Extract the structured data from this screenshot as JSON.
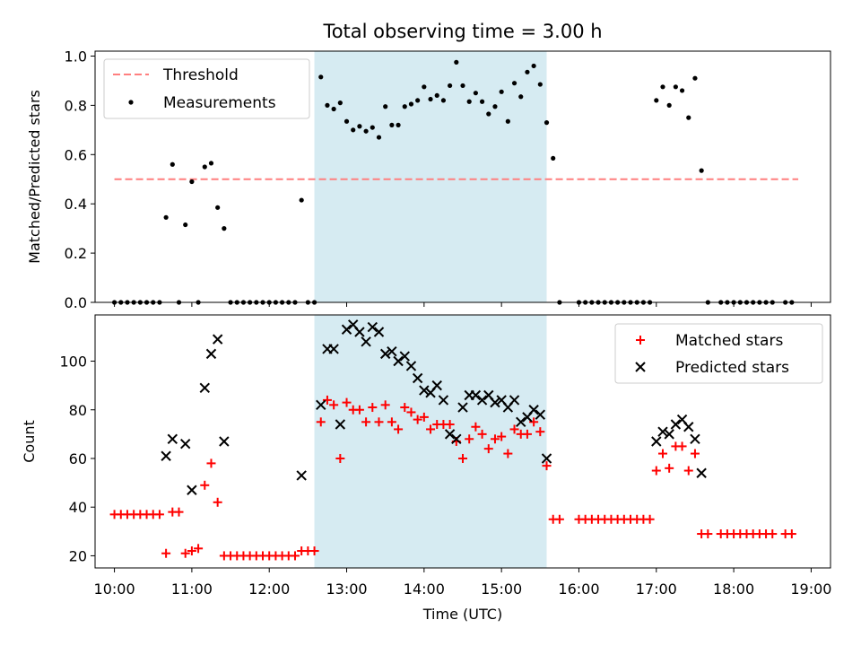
{
  "chart_data": [
    {
      "type": "scatter",
      "title": "Total observing time = 3.00 h",
      "ylabel": "Matched/Predicted stars",
      "xlabel": "",
      "xlim": [
        "09:45",
        "19:15"
      ],
      "ylim": [
        0,
        1.02
      ],
      "yticks": [
        "0.0",
        "0.2",
        "0.4",
        "0.6",
        "0.8",
        "1.0"
      ],
      "shaded_span": [
        "12:35",
        "15:35"
      ],
      "legend": {
        "placement": "top-left",
        "entries": [
          "Threshold",
          "Measurements"
        ]
      },
      "threshold": {
        "name": "Threshold",
        "value": 0.5,
        "x_range": [
          "10:00",
          "18:50"
        ],
        "color": "#ff7f7f"
      },
      "series": [
        {
          "name": "Measurements",
          "color": "#000000",
          "points": [
            [
              "10:00",
              0
            ],
            [
              "10:05",
              0
            ],
            [
              "10:10",
              0
            ],
            [
              "10:15",
              0
            ],
            [
              "10:20",
              0
            ],
            [
              "10:25",
              0
            ],
            [
              "10:30",
              0
            ],
            [
              "10:35",
              0
            ],
            [
              "10:40",
              0.345
            ],
            [
              "10:45",
              0.56
            ],
            [
              "10:50",
              0
            ],
            [
              "10:55",
              0.315
            ],
            [
              "11:00",
              0.49
            ],
            [
              "11:05",
              0
            ],
            [
              "11:10",
              0.55
            ],
            [
              "11:15",
              0.565
            ],
            [
              "11:20",
              0.385
            ],
            [
              "11:25",
              0.3
            ],
            [
              "11:30",
              0
            ],
            [
              "11:35",
              0
            ],
            [
              "11:40",
              0
            ],
            [
              "11:45",
              0
            ],
            [
              "11:50",
              0
            ],
            [
              "11:55",
              0
            ],
            [
              "12:00",
              0
            ],
            [
              "12:05",
              0
            ],
            [
              "12:10",
              0
            ],
            [
              "12:15",
              0
            ],
            [
              "12:20",
              0
            ],
            [
              "12:25",
              0.415
            ],
            [
              "12:30",
              0
            ],
            [
              "12:35",
              0
            ],
            [
              "12:40",
              0.915
            ],
            [
              "12:45",
              0.8
            ],
            [
              "12:50",
              0.785
            ],
            [
              "12:55",
              0.81
            ],
            [
              "13:00",
              0.735
            ],
            [
              "13:05",
              0.7
            ],
            [
              "13:10",
              0.715
            ],
            [
              "13:15",
              0.695
            ],
            [
              "13:20",
              0.71
            ],
            [
              "13:25",
              0.67
            ],
            [
              "13:30",
              0.795
            ],
            [
              "13:35",
              0.72
            ],
            [
              "13:40",
              0.72
            ],
            [
              "13:45",
              0.795
            ],
            [
              "13:50",
              0.805
            ],
            [
              "13:55",
              0.82
            ],
            [
              "14:00",
              0.875
            ],
            [
              "14:05",
              0.825
            ],
            [
              "14:10",
              0.84
            ],
            [
              "14:15",
              0.82
            ],
            [
              "14:20",
              0.88
            ],
            [
              "14:25",
              0.975
            ],
            [
              "14:30",
              0.88
            ],
            [
              "14:35",
              0.815
            ],
            [
              "14:40",
              0.85
            ],
            [
              "14:45",
              0.815
            ],
            [
              "14:50",
              0.765
            ],
            [
              "14:55",
              0.795
            ],
            [
              "15:00",
              0.855
            ],
            [
              "15:05",
              0.735
            ],
            [
              "15:10",
              0.89
            ],
            [
              "15:15",
              0.835
            ],
            [
              "15:20",
              0.935
            ],
            [
              "15:25",
              0.96
            ],
            [
              "15:30",
              0.885
            ],
            [
              "15:35",
              0.73
            ],
            [
              "15:40",
              0.585
            ],
            [
              "15:45",
              0
            ],
            [
              "16:00",
              0
            ],
            [
              "16:05",
              0
            ],
            [
              "16:10",
              0
            ],
            [
              "16:15",
              0
            ],
            [
              "16:20",
              0
            ],
            [
              "16:25",
              0
            ],
            [
              "16:30",
              0
            ],
            [
              "16:35",
              0
            ],
            [
              "16:40",
              0
            ],
            [
              "16:45",
              0
            ],
            [
              "16:50",
              0
            ],
            [
              "16:55",
              0
            ],
            [
              "17:00",
              0.82
            ],
            [
              "17:05",
              0.875
            ],
            [
              "17:10",
              0.8
            ],
            [
              "17:15",
              0.875
            ],
            [
              "17:20",
              0.86
            ],
            [
              "17:25",
              0.75
            ],
            [
              "17:30",
              0.91
            ],
            [
              "17:35",
              0.535
            ],
            [
              "17:40",
              0
            ],
            [
              "17:50",
              0
            ],
            [
              "17:55",
              0
            ],
            [
              "18:00",
              0
            ],
            [
              "18:05",
              0
            ],
            [
              "18:10",
              0
            ],
            [
              "18:15",
              0
            ],
            [
              "18:20",
              0
            ],
            [
              "18:25",
              0
            ],
            [
              "18:30",
              0
            ],
            [
              "18:40",
              0
            ],
            [
              "18:45",
              0
            ]
          ]
        }
      ]
    },
    {
      "type": "scatter",
      "title": "",
      "ylabel": "Count",
      "xlabel": "Time (UTC)",
      "xlim": [
        "09:45",
        "19:15"
      ],
      "ylim": [
        15,
        119
      ],
      "xticks": [
        "10:00",
        "11:00",
        "12:00",
        "13:00",
        "14:00",
        "15:00",
        "16:00",
        "17:00",
        "18:00",
        "19:00"
      ],
      "yticks": [
        "20",
        "40",
        "60",
        "80",
        "100"
      ],
      "shaded_span": [
        "12:35",
        "15:35"
      ],
      "legend": {
        "placement": "top-right",
        "entries": [
          "Matched stars",
          "Predicted stars"
        ]
      },
      "series": [
        {
          "name": "Matched stars",
          "marker": "plus",
          "color": "#ff0000",
          "points": [
            [
              "10:00",
              37
            ],
            [
              "10:05",
              37
            ],
            [
              "10:10",
              37
            ],
            [
              "10:15",
              37
            ],
            [
              "10:20",
              37
            ],
            [
              "10:25",
              37
            ],
            [
              "10:30",
              37
            ],
            [
              "10:35",
              37
            ],
            [
              "10:40",
              21
            ],
            [
              "10:45",
              38
            ],
            [
              "10:50",
              38
            ],
            [
              "10:55",
              21
            ],
            [
              "11:00",
              22
            ],
            [
              "11:05",
              23
            ],
            [
              "11:10",
              49
            ],
            [
              "11:15",
              58
            ],
            [
              "11:20",
              42
            ],
            [
              "11:25",
              20
            ],
            [
              "11:30",
              20
            ],
            [
              "11:35",
              20
            ],
            [
              "11:40",
              20
            ],
            [
              "11:45",
              20
            ],
            [
              "11:50",
              20
            ],
            [
              "11:55",
              20
            ],
            [
              "12:00",
              20
            ],
            [
              "12:05",
              20
            ],
            [
              "12:10",
              20
            ],
            [
              "12:15",
              20
            ],
            [
              "12:20",
              20
            ],
            [
              "12:25",
              22
            ],
            [
              "12:30",
              22
            ],
            [
              "12:35",
              22
            ],
            [
              "12:40",
              75
            ],
            [
              "12:45",
              84
            ],
            [
              "12:50",
              82
            ],
            [
              "12:55",
              60
            ],
            [
              "13:00",
              83
            ],
            [
              "13:05",
              80
            ],
            [
              "13:10",
              80
            ],
            [
              "13:15",
              75
            ],
            [
              "13:20",
              81
            ],
            [
              "13:25",
              75
            ],
            [
              "13:30",
              82
            ],
            [
              "13:35",
              75
            ],
            [
              "13:40",
              72
            ],
            [
              "13:45",
              81
            ],
            [
              "13:50",
              79
            ],
            [
              "13:55",
              76
            ],
            [
              "14:00",
              77
            ],
            [
              "14:05",
              72
            ],
            [
              "14:10",
              74
            ],
            [
              "14:15",
              74
            ],
            [
              "14:20",
              74
            ],
            [
              "14:25",
              67
            ],
            [
              "14:30",
              60
            ],
            [
              "14:35",
              68
            ],
            [
              "14:40",
              73
            ],
            [
              "14:45",
              70
            ],
            [
              "14:50",
              64
            ],
            [
              "14:55",
              68
            ],
            [
              "15:00",
              69
            ],
            [
              "15:05",
              62
            ],
            [
              "15:10",
              72
            ],
            [
              "15:15",
              70
            ],
            [
              "15:20",
              70
            ],
            [
              "15:25",
              75
            ],
            [
              "15:30",
              71
            ],
            [
              "15:35",
              57
            ],
            [
              "15:40",
              35
            ],
            [
              "15:45",
              35
            ],
            [
              "16:00",
              35
            ],
            [
              "16:05",
              35
            ],
            [
              "16:10",
              35
            ],
            [
              "16:15",
              35
            ],
            [
              "16:20",
              35
            ],
            [
              "16:25",
              35
            ],
            [
              "16:30",
              35
            ],
            [
              "16:35",
              35
            ],
            [
              "16:40",
              35
            ],
            [
              "16:45",
              35
            ],
            [
              "16:50",
              35
            ],
            [
              "16:55",
              35
            ],
            [
              "17:00",
              55
            ],
            [
              "17:05",
              62
            ],
            [
              "17:10",
              56
            ],
            [
              "17:15",
              65
            ],
            [
              "17:20",
              65
            ],
            [
              "17:25",
              55
            ],
            [
              "17:30",
              62
            ],
            [
              "17:35",
              29
            ],
            [
              "17:40",
              29
            ],
            [
              "17:50",
              29
            ],
            [
              "17:55",
              29
            ],
            [
              "18:00",
              29
            ],
            [
              "18:05",
              29
            ],
            [
              "18:10",
              29
            ],
            [
              "18:15",
              29
            ],
            [
              "18:20",
              29
            ],
            [
              "18:25",
              29
            ],
            [
              "18:30",
              29
            ],
            [
              "18:40",
              29
            ],
            [
              "18:45",
              29
            ]
          ]
        },
        {
          "name": "Predicted stars",
          "marker": "x",
          "color": "#000000",
          "points": [
            [
              "10:40",
              61
            ],
            [
              "10:45",
              68
            ],
            [
              "10:55",
              66
            ],
            [
              "11:00",
              47
            ],
            [
              "11:10",
              89
            ],
            [
              "11:15",
              103
            ],
            [
              "11:20",
              109
            ],
            [
              "11:25",
              67
            ],
            [
              "12:25",
              53
            ],
            [
              "12:40",
              82
            ],
            [
              "12:45",
              105
            ],
            [
              "12:50",
              105
            ],
            [
              "12:55",
              74
            ],
            [
              "13:00",
              113
            ],
            [
              "13:05",
              115
            ],
            [
              "13:10",
              112
            ],
            [
              "13:15",
              108
            ],
            [
              "13:20",
              114
            ],
            [
              "13:25",
              112
            ],
            [
              "13:30",
              103
            ],
            [
              "13:35",
              104
            ],
            [
              "13:40",
              100
            ],
            [
              "13:45",
              102
            ],
            [
              "13:50",
              98
            ],
            [
              "13:55",
              93
            ],
            [
              "14:00",
              88
            ],
            [
              "14:05",
              87
            ],
            [
              "14:10",
              90
            ],
            [
              "14:15",
              84
            ],
            [
              "14:20",
              70
            ],
            [
              "14:25",
              68
            ],
            [
              "14:30",
              81
            ],
            [
              "14:35",
              86
            ],
            [
              "14:40",
              86
            ],
            [
              "14:45",
              84
            ],
            [
              "14:50",
              86
            ],
            [
              "14:55",
              83
            ],
            [
              "15:00",
              84
            ],
            [
              "15:05",
              81
            ],
            [
              "15:10",
              84
            ],
            [
              "15:15",
              75
            ],
            [
              "15:20",
              77
            ],
            [
              "15:25",
              80
            ],
            [
              "15:30",
              78
            ],
            [
              "15:35",
              60
            ],
            [
              "17:00",
              67
            ],
            [
              "17:05",
              71
            ],
            [
              "17:10",
              70
            ],
            [
              "17:15",
              74
            ],
            [
              "17:20",
              76
            ],
            [
              "17:25",
              73
            ],
            [
              "17:30",
              68
            ],
            [
              "17:35",
              54
            ]
          ]
        }
      ]
    }
  ]
}
